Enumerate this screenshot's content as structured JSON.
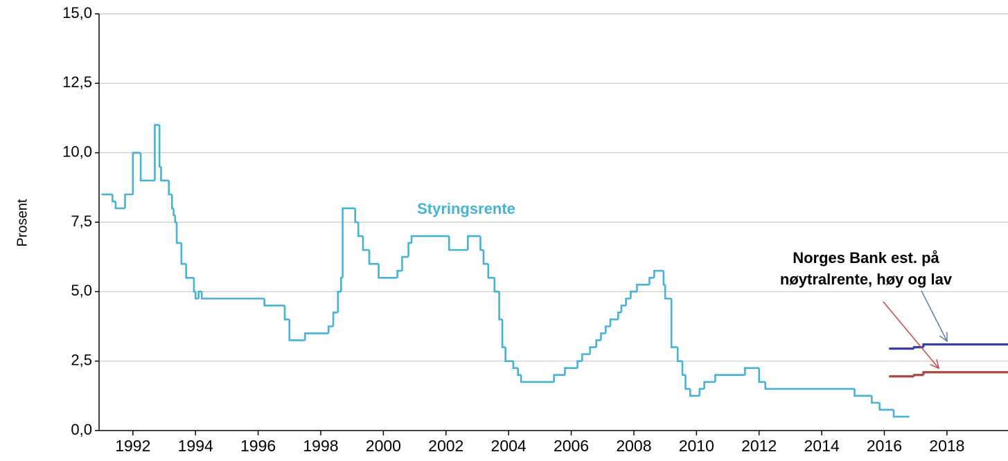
{
  "chart_data": {
    "type": "line",
    "step": "post",
    "y_label": "Prosent",
    "annotation": [
      "Norges Bank est. på",
      "nøytralrente, høy og lav"
    ],
    "xlim": [
      1990.92,
      2019.95
    ],
    "xticks": [
      1992,
      1994,
      1996,
      1998,
      2000,
      2002,
      2004,
      2006,
      2008,
      2010,
      2012,
      2014,
      2016,
      2018
    ],
    "ylim": [
      0,
      15
    ],
    "yticks": [
      {
        "value": 0,
        "label": "0,0"
      },
      {
        "value": 2.5,
        "label": "2,5"
      },
      {
        "value": 5,
        "label": "5,0"
      },
      {
        "value": 7.5,
        "label": "7,5"
      },
      {
        "value": 10,
        "label": "10,0"
      },
      {
        "value": 12.5,
        "label": "12,5"
      },
      {
        "value": 15,
        "label": "15,0"
      }
    ],
    "grid": true,
    "series": [
      {
        "name": "Styringsrente",
        "color": "#45b3d8",
        "x": [
          1991.0,
          1991.35,
          1991.45,
          1991.75,
          1992.0,
          1992.25,
          1992.7,
          1992.85,
          1992.9,
          1993.15,
          1993.25,
          1993.3,
          1993.35,
          1993.4,
          1993.55,
          1993.7,
          1993.95,
          1994.0,
          1994.1,
          1994.2,
          1996.2,
          1996.85,
          1997.0,
          1997.5,
          1998.25,
          1998.4,
          1998.55,
          1998.65,
          1998.7,
          1999.1,
          1999.2,
          1999.35,
          1999.55,
          1999.85,
          2000.45,
          2000.6,
          2000.8,
          2000.9,
          2002.1,
          2002.7,
          2003.1,
          2003.2,
          2003.35,
          2003.55,
          2003.7,
          2003.8,
          2003.9,
          2004.15,
          2004.3,
          2004.4,
          2005.45,
          2005.8,
          2006.2,
          2006.35,
          2006.6,
          2006.8,
          2006.95,
          2007.1,
          2007.25,
          2007.5,
          2007.6,
          2007.75,
          2007.9,
          2008.1,
          2008.5,
          2008.65,
          2008.95,
          2009.0,
          2009.2,
          2009.4,
          2009.55,
          2009.65,
          2009.8,
          2010.1,
          2010.25,
          2010.6,
          2011.55,
          2012.0,
          2012.2,
          2015.05,
          2015.6,
          2015.85,
          2016.3,
          2016.8
        ],
        "values": [
          8.5,
          8.25,
          8.0,
          8.5,
          10.0,
          9.0,
          11.0,
          9.5,
          9.0,
          8.5,
          8.0,
          7.75,
          7.5,
          6.75,
          6.0,
          5.5,
          5.0,
          4.75,
          5.0,
          4.75,
          4.5,
          4.0,
          3.25,
          3.5,
          3.75,
          4.25,
          5.0,
          5.5,
          8.0,
          7.5,
          7.0,
          6.5,
          6.0,
          5.5,
          5.75,
          6.25,
          6.75,
          7.0,
          6.5,
          7.0,
          6.5,
          6.0,
          5.5,
          5.0,
          4.0,
          3.0,
          2.5,
          2.25,
          2.0,
          1.75,
          2.0,
          2.25,
          2.5,
          2.75,
          3.0,
          3.25,
          3.5,
          3.75,
          4.0,
          4.25,
          4.5,
          4.75,
          5.0,
          5.25,
          5.5,
          5.75,
          5.25,
          4.75,
          3.0,
          2.5,
          2.0,
          1.5,
          1.25,
          1.5,
          1.75,
          2.0,
          2.25,
          1.75,
          1.5,
          1.25,
          1.0,
          0.75,
          0.5,
          0.5
        ]
      },
      {
        "color": "#3b3ba6",
        "x": [
          2016.15,
          2016.95,
          2017.25,
          2019.95
        ],
        "values": [
          2.95,
          3.0,
          3.1,
          3.1
        ]
      },
      {
        "color": "#b04545",
        "x": [
          2016.15,
          2016.95,
          2017.25,
          2019.95
        ],
        "values": [
          1.95,
          2.0,
          2.1,
          2.1
        ]
      }
    ]
  }
}
